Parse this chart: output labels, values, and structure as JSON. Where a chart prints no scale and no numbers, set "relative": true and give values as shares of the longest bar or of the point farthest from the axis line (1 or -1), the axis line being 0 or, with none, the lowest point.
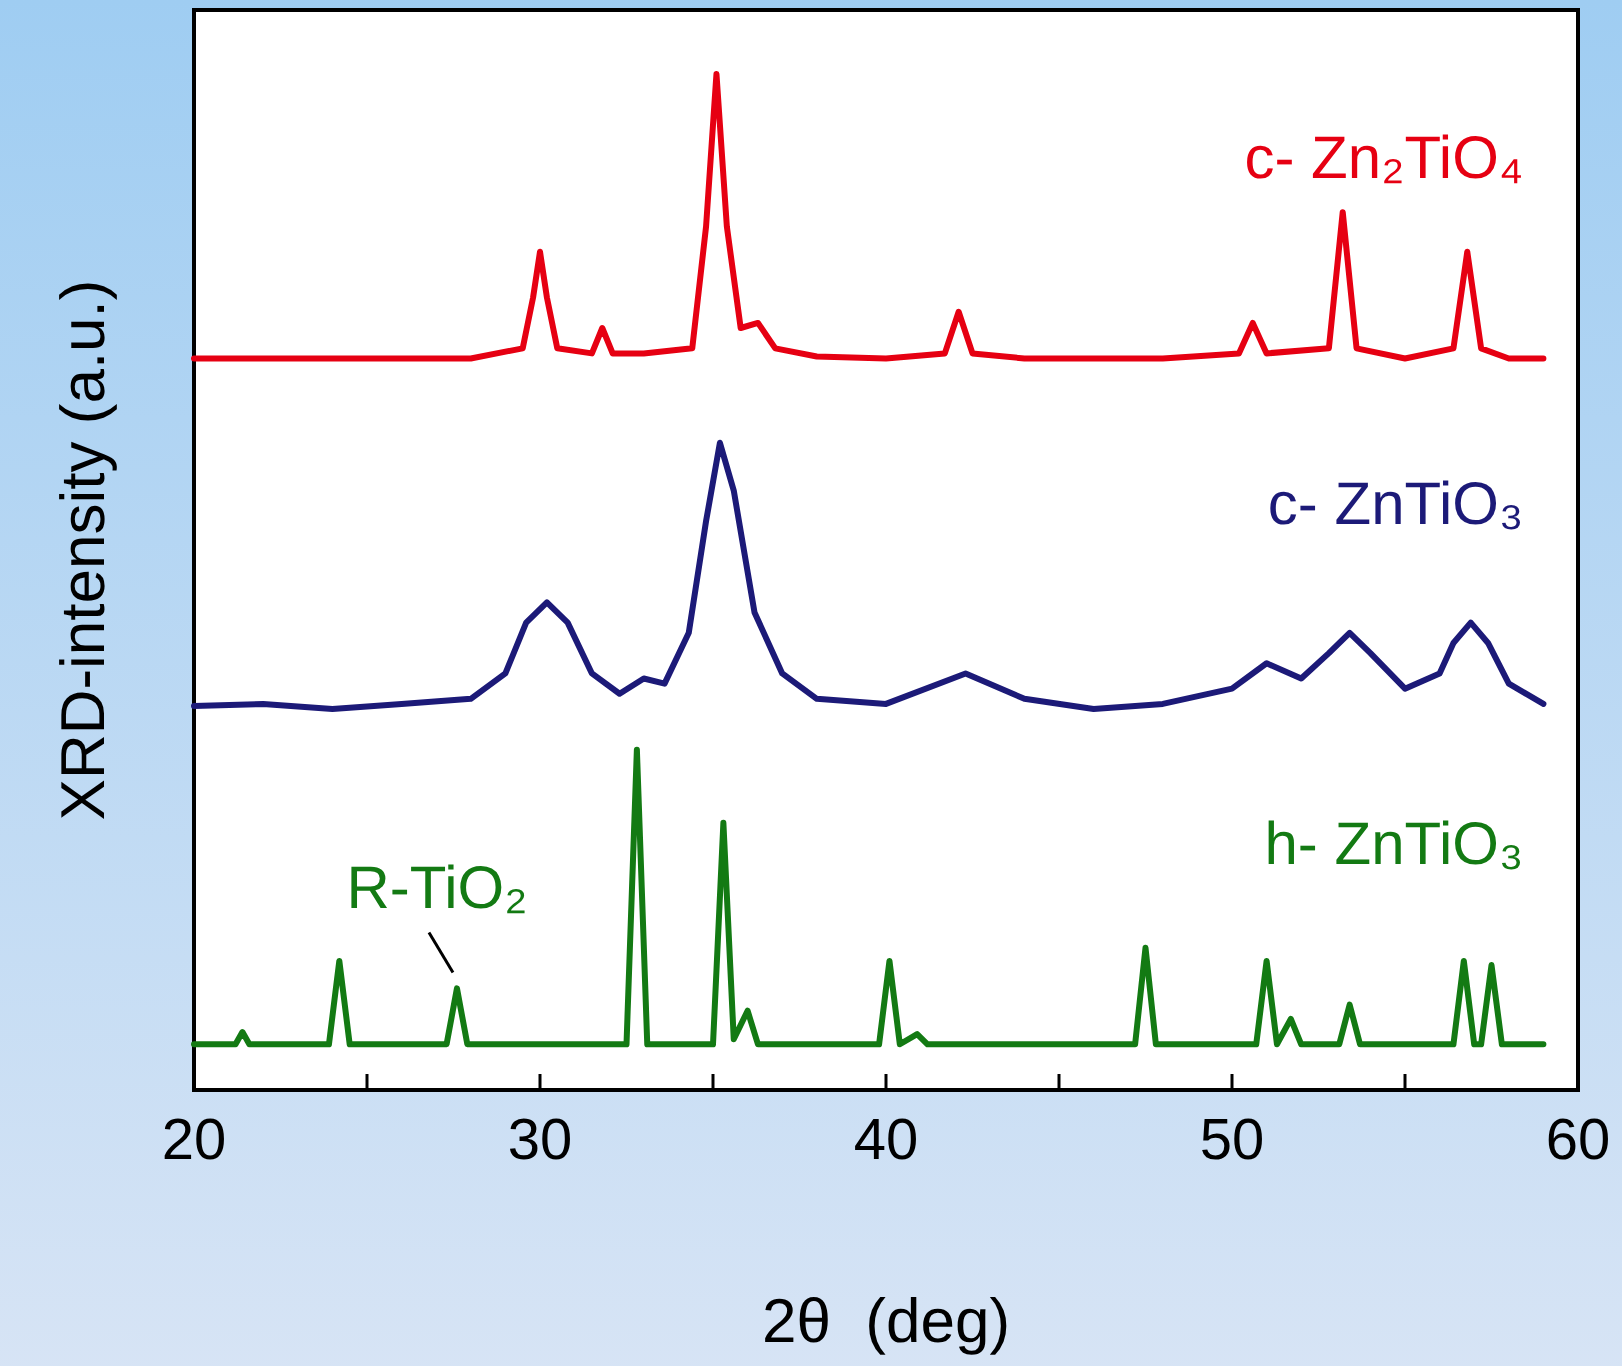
{
  "chart_data": {
    "type": "line",
    "relative": true,
    "xlabel": "2θ  (deg)",
    "ylabel": "XRD-intensity (a.u.)",
    "xlim": [
      20,
      60
    ],
    "xticks": [
      20,
      {
        "value": 25,
        "label": null
      },
      30,
      {
        "value": 35,
        "label": null
      },
      40,
      {
        "value": 45,
        "label": null
      },
      50,
      {
        "value": 55,
        "label": null
      },
      60
    ],
    "grid": false,
    "marker": "none",
    "line_style": "solid",
    "annotations": [
      {
        "text": "R-TiO₂",
        "x": 27.6,
        "y": 0.1
      }
    ],
    "series": [
      {
        "name": "c- Zn₂TiO₄",
        "color": "#e60012",
        "x": [
          20,
          22,
          24,
          26,
          28,
          29.5,
          29.8,
          30.0,
          30.2,
          30.5,
          31.5,
          31.8,
          32.1,
          33,
          34.4,
          34.8,
          35.1,
          35.4,
          35.8,
          36.3,
          36.8,
          38,
          40,
          41.7,
          42.1,
          42.5,
          44,
          46,
          48,
          50.2,
          50.6,
          51,
          52.8,
          53.2,
          53.6,
          55,
          56.4,
          56.8,
          57.2,
          58,
          59
        ],
        "values": [
          0.72,
          0.72,
          0.72,
          0.72,
          0.72,
          0.73,
          0.78,
          0.825,
          0.78,
          0.73,
          0.725,
          0.75,
          0.725,
          0.725,
          0.73,
          0.85,
          1.0,
          0.85,
          0.75,
          0.755,
          0.73,
          0.722,
          0.72,
          0.725,
          0.766,
          0.725,
          0.72,
          0.72,
          0.72,
          0.725,
          0.755,
          0.725,
          0.73,
          0.864,
          0.73,
          0.72,
          0.73,
          0.825,
          0.73,
          0.72,
          0.72
        ]
      },
      {
        "name": "c- ZnTiO₃",
        "color": "#1c1a78",
        "x": [
          20,
          22,
          24,
          26,
          28,
          29,
          29.6,
          30.2,
          30.8,
          31.5,
          32.3,
          33,
          33.6,
          34.3,
          34.8,
          35.2,
          35.6,
          36.2,
          37,
          38,
          40,
          42.3,
          44,
          46,
          48,
          50,
          51,
          52,
          52.8,
          53.4,
          54,
          55,
          56,
          56.4,
          56.9,
          57.4,
          58,
          59
        ],
        "values": [
          0.378,
          0.38,
          0.375,
          0.38,
          0.385,
          0.41,
          0.46,
          0.48,
          0.46,
          0.41,
          0.39,
          0.405,
          0.4,
          0.45,
          0.56,
          0.637,
          0.59,
          0.47,
          0.41,
          0.385,
          0.38,
          0.41,
          0.385,
          0.375,
          0.38,
          0.395,
          0.42,
          0.405,
          0.43,
          0.45,
          0.43,
          0.395,
          0.41,
          0.44,
          0.46,
          0.44,
          0.4,
          0.38
        ]
      },
      {
        "name": "h- ZnTiO₃",
        "color": "#137a13",
        "x": [
          20,
          21.2,
          21.4,
          21.6,
          23.9,
          24.2,
          24.5,
          27.3,
          27.6,
          27.9,
          32.5,
          32.8,
          33.1,
          35,
          35.3,
          35.6,
          36.0,
          36.3,
          39.8,
          40.1,
          40.4,
          40.9,
          41.2,
          47.2,
          47.5,
          47.8,
          50.7,
          51.0,
          51.3,
          51.7,
          52,
          53.1,
          53.4,
          53.7,
          56.4,
          56.7,
          57.0,
          57.2,
          57.5,
          57.8,
          59
        ],
        "values": [
          0.045,
          0.045,
          0.057,
          0.045,
          0.045,
          0.127,
          0.045,
          0.045,
          0.1,
          0.045,
          0.045,
          0.335,
          0.045,
          0.045,
          0.263,
          0.05,
          0.078,
          0.045,
          0.045,
          0.127,
          0.045,
          0.055,
          0.045,
          0.045,
          0.14,
          0.045,
          0.045,
          0.127,
          0.045,
          0.07,
          0.045,
          0.045,
          0.084,
          0.045,
          0.045,
          0.127,
          0.045,
          0.045,
          0.123,
          0.045,
          0.045
        ]
      }
    ]
  }
}
